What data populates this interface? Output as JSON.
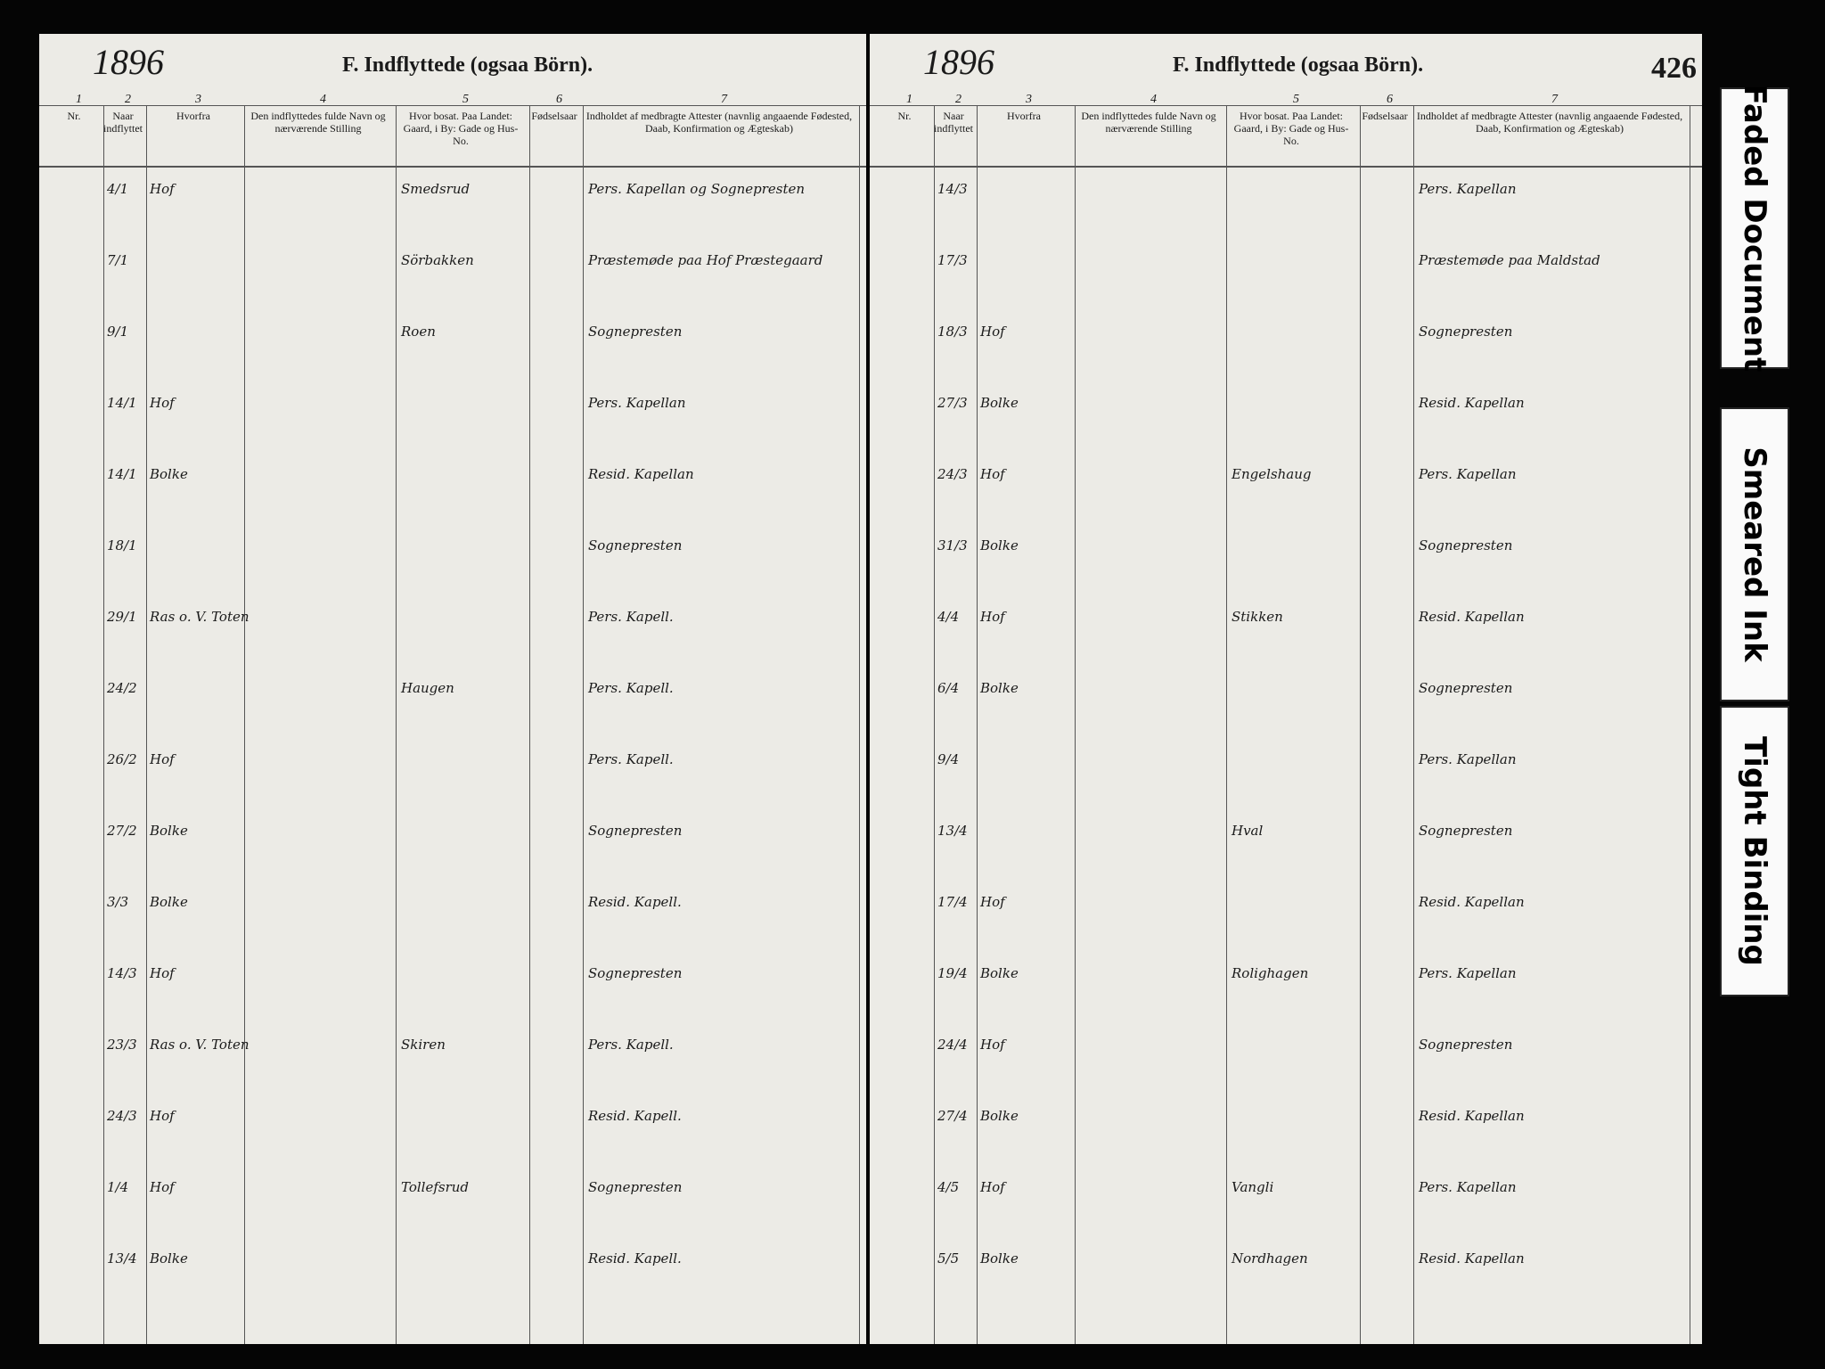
{
  "tags": [
    "Faded Document",
    "Smeared Ink",
    "Tight Binding"
  ],
  "left_page": {
    "year": "1896",
    "title": "F. Indflyttede (ogsaa Börn).",
    "column_numbers": [
      "1",
      "2",
      "3",
      "4",
      "5",
      "6",
      "7"
    ],
    "headers": [
      "Nr.",
      "Naar indflyttet",
      "Hvorfra",
      "Den indflyttedes fulde Navn og nærværende Stilling",
      "Hvor bosat. Paa Landet: Gaard, i By: Gade og Hus-No.",
      "Fødselsaar",
      "Indholdet af medbragte Attester (navnlig angaaende Fødested, Daab, Konfirmation og Ægteskab)"
    ],
    "rows": [
      {
        "date": "4/1",
        "from": "Hof",
        "residence": "Smedsrud",
        "attest": "Pers. Kapellan og Sognepresten"
      },
      {
        "date": "7/1",
        "from": "",
        "residence": "Sörbakken",
        "attest": "Præstemøde paa Hof Præstegaard"
      },
      {
        "date": "9/1",
        "from": "",
        "residence": "Roen",
        "attest": "Sognepresten"
      },
      {
        "date": "14/1",
        "from": "Hof",
        "residence": "",
        "attest": "Pers. Kapellan"
      },
      {
        "date": "14/1",
        "from": "Bolke",
        "residence": "",
        "attest": "Resid. Kapellan"
      },
      {
        "date": "18/1",
        "from": "",
        "residence": "",
        "attest": "Sognepresten"
      },
      {
        "date": "29/1",
        "from": "Ras o. V. Toten",
        "residence": "",
        "attest": "Pers. Kapell."
      },
      {
        "date": "24/2",
        "from": "",
        "residence": "Haugen",
        "attest": "Pers. Kapell."
      },
      {
        "date": "26/2",
        "from": "Hof",
        "residence": "",
        "attest": "Pers. Kapell."
      },
      {
        "date": "27/2",
        "from": "Bolke",
        "residence": "",
        "attest": "Sognepresten"
      },
      {
        "date": "3/3",
        "from": "Bolke",
        "residence": "",
        "attest": "Resid. Kapell."
      },
      {
        "date": "14/3",
        "from": "Hof",
        "residence": "",
        "attest": "Sognepresten"
      },
      {
        "date": "23/3",
        "from": "Ras o. V. Toten",
        "residence": "Skiren",
        "attest": "Pers. Kapell."
      },
      {
        "date": "24/3",
        "from": "Hof",
        "residence": "",
        "attest": "Resid. Kapell."
      },
      {
        "date": "1/4",
        "from": "Hof",
        "residence": "Tollefsrud",
        "attest": "Sognepresten"
      },
      {
        "date": "13/4",
        "from": "Bolke",
        "residence": "",
        "attest": "Resid. Kapell."
      }
    ]
  },
  "right_page": {
    "year": "1896",
    "title": "F. Indflyttede (ogsaa Börn).",
    "page_number": "426",
    "column_numbers": [
      "1",
      "2",
      "3",
      "4",
      "5",
      "6",
      "7"
    ],
    "headers": [
      "Nr.",
      "Naar indflyttet",
      "Hvorfra",
      "Den indflyttedes fulde Navn og nærværende Stilling",
      "Hvor bosat. Paa Landet: Gaard, i By: Gade og Hus-No.",
      "Fødselsaar",
      "Indholdet af medbragte Attester (navnlig angaaende Fødested, Daab, Konfirmation og Ægteskab)"
    ],
    "rows": [
      {
        "date": "14/3",
        "from": "",
        "residence": "",
        "attest": "Pers. Kapellan"
      },
      {
        "date": "17/3",
        "from": "",
        "residence": "",
        "attest": "Præstemøde paa Maldstad"
      },
      {
        "date": "18/3",
        "from": "Hof",
        "residence": "",
        "attest": "Sognepresten"
      },
      {
        "date": "27/3",
        "from": "Bolke",
        "residence": "",
        "attest": "Resid. Kapellan"
      },
      {
        "date": "24/3",
        "from": "Hof",
        "residence": "Engelshaug",
        "attest": "Pers. Kapellan"
      },
      {
        "date": "31/3",
        "from": "Bolke",
        "residence": "",
        "attest": "Sognepresten"
      },
      {
        "date": "4/4",
        "from": "Hof",
        "residence": "Stikken",
        "attest": "Resid. Kapellan"
      },
      {
        "date": "6/4",
        "from": "Bolke",
        "residence": "",
        "attest": "Sognepresten"
      },
      {
        "date": "9/4",
        "from": "",
        "residence": "",
        "attest": "Pers. Kapellan"
      },
      {
        "date": "13/4",
        "from": "",
        "residence": "Hval",
        "attest": "Sognepresten"
      },
      {
        "date": "17/4",
        "from": "Hof",
        "residence": "",
        "attest": "Resid. Kapellan"
      },
      {
        "date": "19/4",
        "from": "Bolke",
        "residence": "Rolighagen",
        "attest": "Pers. Kapellan"
      },
      {
        "date": "24/4",
        "from": "Hof",
        "residence": "",
        "attest": "Sognepresten"
      },
      {
        "date": "27/4",
        "from": "Bolke",
        "residence": "",
        "attest": "Resid. Kapellan"
      },
      {
        "date": "4/5",
        "from": "Hof",
        "residence": "Vangli",
        "attest": "Pers. Kapellan"
      },
      {
        "date": "5/5",
        "from": "Bolke",
        "residence": "Nordhagen",
        "attest": "Resid. Kapellan"
      }
    ]
  }
}
